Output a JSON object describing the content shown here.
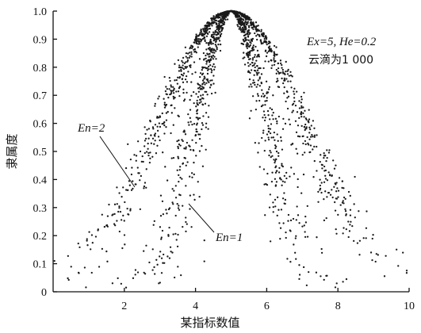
{
  "chart_data": {
    "type": "scatter",
    "title": "",
    "xlabel": "某指标数值",
    "ylabel": "隶属度",
    "xlim": [
      0,
      10
    ],
    "ylim": [
      0,
      1.0
    ],
    "grid": false,
    "xticks": [
      "2",
      "4",
      "6",
      "8",
      "10"
    ],
    "yticks": [
      "0",
      "0.1",
      "0.2",
      "0.3",
      "0.4",
      "0.5",
      "0.6",
      "0.7",
      "0.8",
      "0.9",
      "1.0"
    ],
    "params": {
      "text_line1": "Ex=5, He=0.2",
      "text_line2": "云滴为1 000"
    },
    "annotations": [
      {
        "text": "En=2",
        "x": 1.9,
        "y": 0.6
      },
      {
        "text": "En=1",
        "x": 4.7,
        "y": 0.18
      }
    ],
    "series": [
      {
        "label": "En=2",
        "Ex": 5,
        "En": 2,
        "He": 0.2,
        "drops": 1000,
        "sample": [
          [
            0.5,
            0.05
          ],
          [
            1.0,
            0.12
          ],
          [
            1.5,
            0.18
          ],
          [
            2.0,
            0.28
          ],
          [
            2.5,
            0.38
          ],
          [
            3.0,
            0.55
          ],
          [
            3.5,
            0.72
          ],
          [
            4.0,
            0.86
          ],
          [
            4.5,
            0.96
          ],
          [
            5.0,
            1.0
          ],
          [
            5.5,
            0.96
          ],
          [
            6.0,
            0.86
          ],
          [
            6.5,
            0.72
          ],
          [
            7.0,
            0.55
          ],
          [
            7.5,
            0.38
          ],
          [
            8.0,
            0.28
          ],
          [
            8.5,
            0.18
          ],
          [
            9.0,
            0.12
          ],
          [
            9.5,
            0.06
          ]
        ]
      },
      {
        "label": "En=1",
        "Ex": 5,
        "En": 1,
        "He": 0.2,
        "drops": 1000,
        "sample": [
          [
            2.6,
            0.02
          ],
          [
            3.0,
            0.12
          ],
          [
            3.5,
            0.3
          ],
          [
            4.0,
            0.6
          ],
          [
            4.5,
            0.88
          ],
          [
            5.0,
            1.0
          ],
          [
            5.5,
            0.88
          ],
          [
            6.0,
            0.6
          ],
          [
            6.5,
            0.3
          ],
          [
            7.0,
            0.12
          ],
          [
            7.5,
            0.04
          ],
          [
            8.0,
            0.01
          ]
        ]
      }
    ]
  }
}
